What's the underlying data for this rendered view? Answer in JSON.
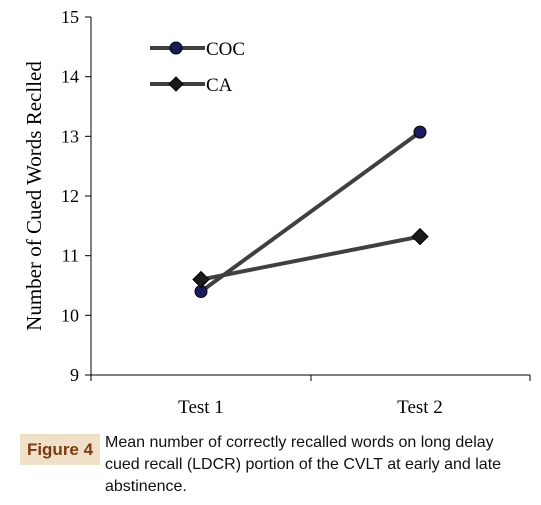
{
  "chart_data": {
    "type": "line",
    "categories": [
      "Test 1",
      "Test 2"
    ],
    "series": [
      {
        "name": "COC",
        "values": [
          10.4,
          13.07
        ],
        "marker": "circle"
      },
      {
        "name": "CA",
        "values": [
          10.6,
          11.32
        ],
        "marker": "diamond"
      }
    ],
    "ylabel": "Number of Cued Words Reclled",
    "xlabel": "",
    "ylim": [
      9,
      15
    ],
    "yticks": [
      9,
      10,
      11,
      12,
      13,
      14,
      15
    ],
    "grid": false,
    "legend_position": "top-left",
    "colors": {
      "line": "#404040",
      "circle_fill": "#1a1a5e",
      "diamond_fill": "#1a1a1a"
    }
  },
  "caption": {
    "label": "Figure 4",
    "text": "Mean number of correctly recalled words on long delay cued recall (LDCR) portion of the CVLT at early and late abstinence.",
    "badge_bg": "#efe0c7",
    "badge_color": "#7a3b12"
  }
}
